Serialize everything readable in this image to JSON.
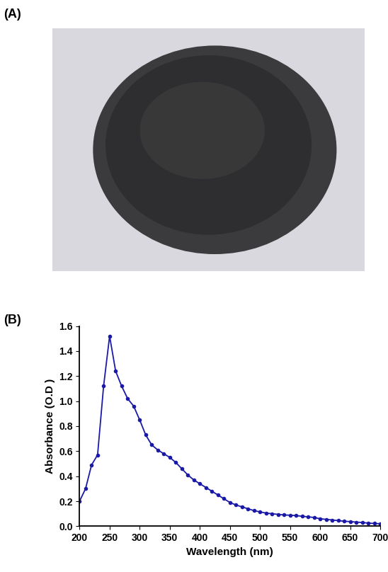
{
  "panel_labels": [
    "(A)",
    "(B)"
  ],
  "chart_data": {
    "type": "line",
    "x_label": "Wavelength (nm)",
    "y_label": "Absorbance (O.D )",
    "x": [
      200,
      210,
      220,
      230,
      240,
      250,
      260,
      270,
      280,
      290,
      300,
      310,
      320,
      330,
      340,
      350,
      360,
      370,
      380,
      390,
      400,
      410,
      420,
      430,
      440,
      450,
      460,
      470,
      480,
      490,
      500,
      510,
      520,
      530,
      540,
      550,
      560,
      570,
      580,
      590,
      600,
      610,
      620,
      630,
      640,
      650,
      660,
      670,
      680,
      690,
      700
    ],
    "values": [
      0.2,
      0.3,
      0.49,
      0.57,
      1.12,
      1.52,
      1.24,
      1.12,
      1.02,
      0.96,
      0.85,
      0.73,
      0.65,
      0.61,
      0.58,
      0.55,
      0.51,
      0.46,
      0.41,
      0.37,
      0.34,
      0.31,
      0.28,
      0.25,
      0.22,
      0.19,
      0.17,
      0.155,
      0.14,
      0.125,
      0.115,
      0.105,
      0.1,
      0.095,
      0.09,
      0.088,
      0.085,
      0.08,
      0.075,
      0.07,
      0.06,
      0.055,
      0.05,
      0.045,
      0.04,
      0.037,
      0.033,
      0.03,
      0.025,
      0.022,
      0.02
    ],
    "color": "#1a1aa6",
    "marker": "o",
    "line_style": "solid",
    "xlim": [
      200,
      700
    ],
    "xticks": [
      200,
      250,
      300,
      350,
      400,
      450,
      500,
      550,
      600,
      650,
      700
    ],
    "ylim": [
      0,
      1.6
    ],
    "yticks": [
      {
        "value": 0,
        "label": "0.0"
      },
      {
        "value": 0.2,
        "label": "0.2"
      },
      {
        "value": 0.4,
        "label": "0.4"
      },
      {
        "value": 0.6,
        "label": "0.6"
      },
      {
        "value": 0.8,
        "label": "0.8"
      },
      {
        "value": 1.0,
        "label": "1.0"
      },
      {
        "value": 1.2,
        "label": "1.2"
      },
      {
        "value": 1.4,
        "label": "1.4"
      },
      {
        "value": 1.6,
        "label": "1.6"
      }
    ],
    "grid": false
  }
}
